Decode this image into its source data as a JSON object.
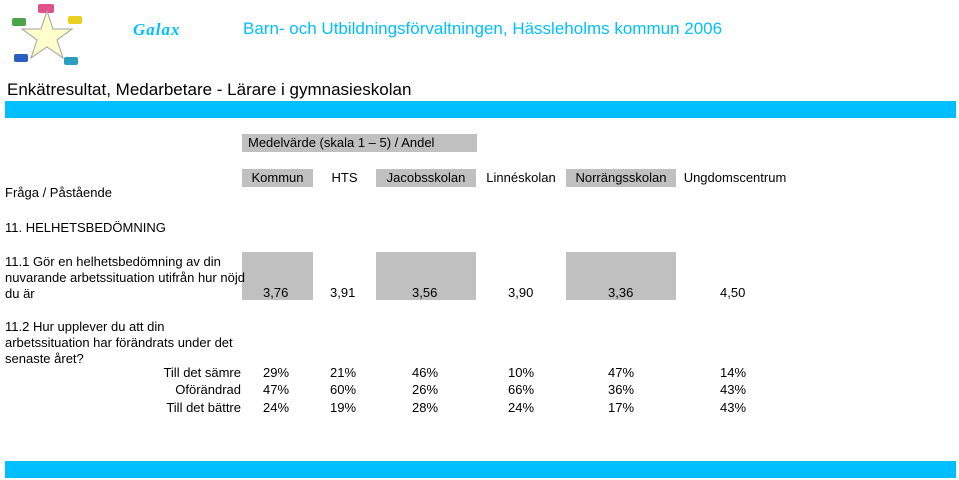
{
  "header": {
    "logo_word": "Galax",
    "organization": "Barn- och Utbildningsförvaltningen, Hässleholms kommun 2006",
    "accent_color": "#00bfff"
  },
  "page_title": "Enkätresultat, Medarbetare - Lärare i gymnasieskolan",
  "table": {
    "measure_header": "Medelvärde (skala 1 – 5) / Andel",
    "row_header": "Fråga / Påstående",
    "columns": [
      "Kommun",
      "HTS",
      "Jacobsskolan",
      "Linnéskolan",
      "Norrängsskolan",
      "Ungdomscentrum"
    ],
    "section": "11. HELHETSBEDÖMNING",
    "q1": {
      "text": "11.1 Gör en helhetsbedömning av din nuvarande arbetssituation utifrån hur nöjd du är",
      "values": [
        "3,76",
        "3,91",
        "3,56",
        "3,90",
        "3,36",
        "4,50"
      ]
    },
    "q2": {
      "text": "11.2 Hur upplever du att din arbetssituation har förändrats under det senaste året?",
      "rows": [
        {
          "label": "Till det sämre",
          "values": [
            "29%",
            "21%",
            "46%",
            "10%",
            "47%",
            "14%"
          ]
        },
        {
          "label": "Oförändrad",
          "values": [
            "47%",
            "60%",
            "26%",
            "66%",
            "36%",
            "43%"
          ]
        },
        {
          "label": "Till det bättre",
          "values": [
            "24%",
            "19%",
            "28%",
            "24%",
            "17%",
            "43%"
          ]
        }
      ]
    }
  }
}
